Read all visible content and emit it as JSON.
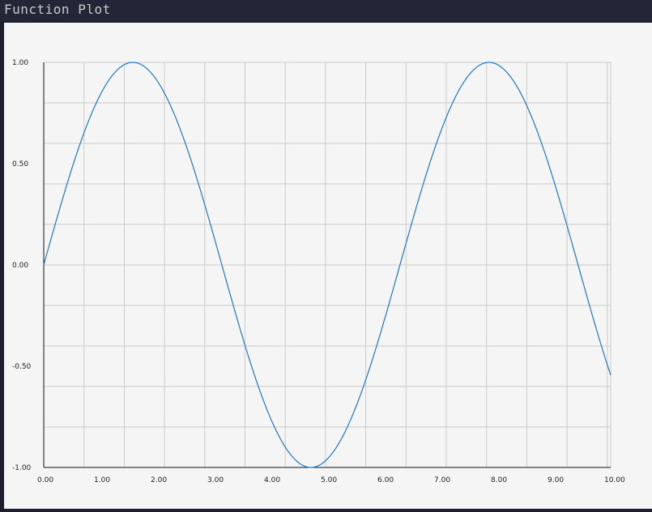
{
  "window": {
    "title": "Function Plot"
  },
  "colors": {
    "series": "#1f78c8",
    "plot_background": "#f5f5f5",
    "grid": "#cccccc"
  },
  "chart_data": {
    "type": "line",
    "title": "",
    "xlabel": "",
    "ylabel": "",
    "xlim": [
      0,
      10
    ],
    "ylim": [
      -1,
      1
    ],
    "grid": true,
    "x_tick_values": [
      0,
      1,
      2,
      3,
      4,
      5,
      6,
      7,
      8,
      9,
      10
    ],
    "x_tick_labels": [
      "0.00",
      "1.00",
      "2.00",
      "3.00",
      "4.00",
      "5.00",
      "6.00",
      "7.00",
      "8.00",
      "9.00",
      "10.00"
    ],
    "y_tick_values": [
      1,
      0.5,
      0,
      -0.5,
      -1
    ],
    "y_tick_labels": [
      "1.00",
      "0.50",
      "0.00",
      "-0.50",
      "-1.00"
    ],
    "y_grid_step": 0.2,
    "x_grid_step": 0.71,
    "series": [
      {
        "function": "sin(x)",
        "x": [
          0,
          0.5,
          1,
          1.5,
          1.57,
          2,
          2.5,
          3,
          3.14,
          3.5,
          4,
          4.5,
          4.71,
          5,
          5.5,
          6,
          6.28,
          6.5,
          7,
          7.5,
          7.85,
          8,
          8.5,
          9,
          9.42,
          9.5,
          10
        ],
        "y": [
          0,
          0.479,
          0.841,
          0.997,
          1.0,
          0.909,
          0.598,
          0.141,
          0.0,
          -0.351,
          -0.757,
          -0.978,
          -1.0,
          -0.959,
          -0.706,
          -0.279,
          0.0,
          0.215,
          0.657,
          0.938,
          1.0,
          0.989,
          0.798,
          0.412,
          0.0,
          -0.075,
          -0.544
        ]
      }
    ]
  }
}
